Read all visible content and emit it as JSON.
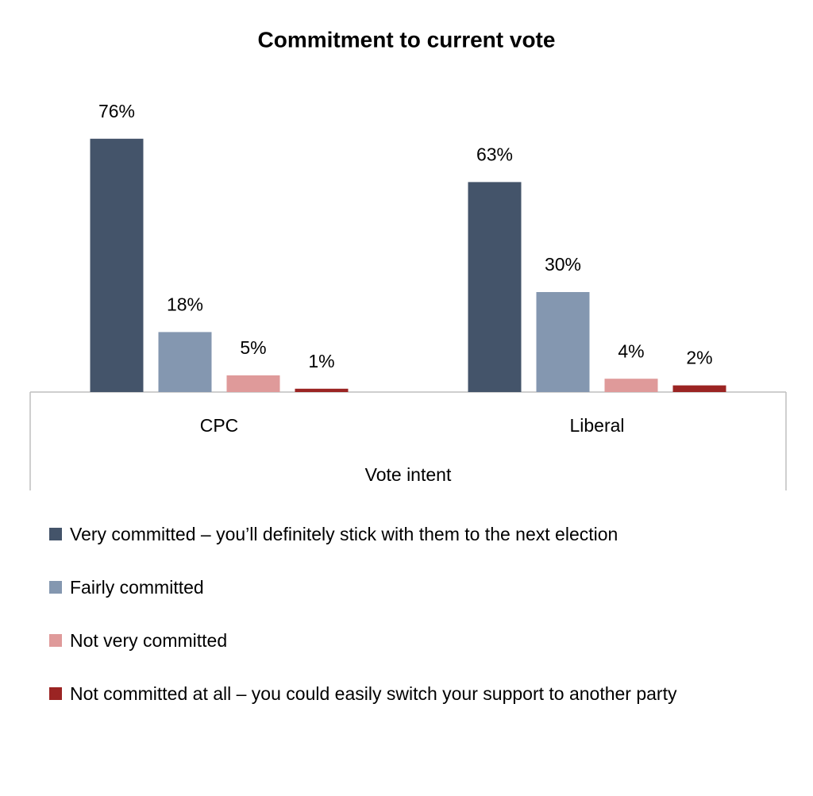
{
  "chart_data": {
    "type": "bar",
    "title": "Commitment to current vote",
    "x_label": "Vote intent",
    "categories": [
      "CPC",
      "Liberal"
    ],
    "series": [
      {
        "name": "Very committed – you’ll definitely stick with them to the next election",
        "color": "#44546a",
        "values": [
          76,
          63
        ],
        "value_labels": [
          "76%",
          "63%"
        ]
      },
      {
        "name": "Fairly committed",
        "color": "#8497b0",
        "values": [
          18,
          30
        ],
        "value_labels": [
          "18%",
          "30%"
        ]
      },
      {
        "name": "Not very committed",
        "color": "#df9a9a",
        "values": [
          5,
          4
        ],
        "value_labels": [
          "5%",
          "4%"
        ]
      },
      {
        "name": "Not committed at all – you could easily switch your support to another party",
        "color": "#9b2423",
        "values": [
          1,
          2
        ],
        "value_labels": [
          "1%",
          "2%"
        ]
      }
    ]
  }
}
